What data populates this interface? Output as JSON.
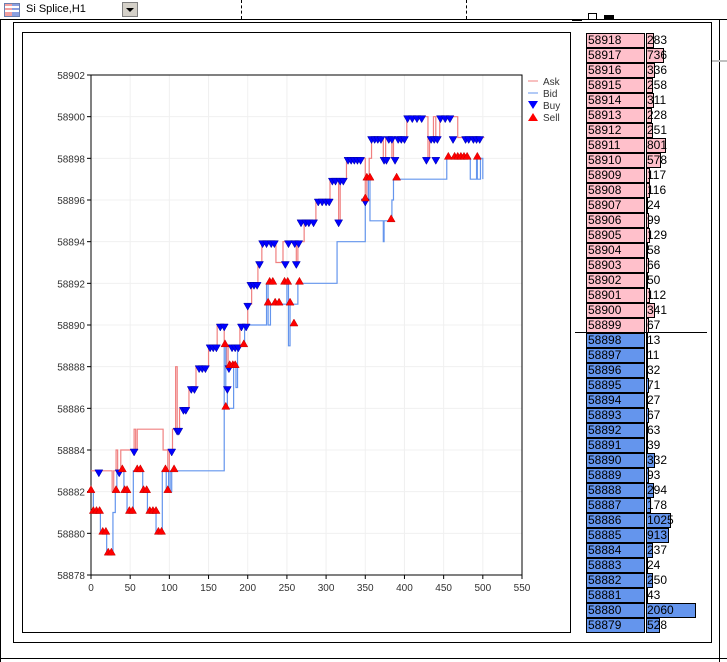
{
  "window": {
    "title": "Si Splice,H1"
  },
  "colors": {
    "ask": "#f08080",
    "bid": "#6495ed",
    "buy": "#0000ff",
    "sell": "#ff0000",
    "ask_row": "#ffc0cb",
    "bid_row": "#6495ed"
  },
  "chart_data": {
    "type": "line",
    "title": "",
    "xlabel": "",
    "ylabel": "",
    "xlim": [
      0,
      550
    ],
    "ylim": [
      58878,
      58902
    ],
    "xticks": [
      "0",
      "50",
      "100",
      "150",
      "200",
      "250",
      "300",
      "350",
      "400",
      "450",
      "500",
      "550"
    ],
    "yticks": [
      "58878",
      "58880",
      "58882",
      "58884",
      "58886",
      "58888",
      "58890",
      "58892",
      "58894",
      "58896",
      "58898",
      "58900",
      "58902"
    ],
    "grid": true,
    "legend_position": "top-right",
    "legend": [
      {
        "label": "Ask",
        "kind": "line"
      },
      {
        "label": "Bid",
        "kind": "line"
      },
      {
        "label": "Buy",
        "kind": "marker-down"
      },
      {
        "label": "Sell",
        "kind": "marker-up"
      }
    ],
    "series": [
      {
        "name": "Ask",
        "kind": "step",
        "points": [
          [
            0,
            58883
          ],
          [
            27,
            58882
          ],
          [
            29,
            58883
          ],
          [
            32,
            58884
          ],
          [
            34,
            58883
          ],
          [
            38,
            58884
          ],
          [
            55,
            58885
          ],
          [
            57,
            58884
          ],
          [
            59,
            58885
          ],
          [
            92,
            58884
          ],
          [
            98,
            58883
          ],
          [
            100,
            58884
          ],
          [
            104,
            58885
          ],
          [
            108,
            58888
          ],
          [
            110,
            58885
          ],
          [
            113,
            58886
          ],
          [
            125,
            58887
          ],
          [
            134,
            58888
          ],
          [
            150,
            58889
          ],
          [
            161,
            58890
          ],
          [
            170,
            58889
          ],
          [
            173,
            58888
          ],
          [
            175,
            58889
          ],
          [
            190,
            58890
          ],
          [
            200,
            58891
          ],
          [
            205,
            58892
          ],
          [
            213,
            58893
          ],
          [
            218,
            58894
          ],
          [
            236,
            58893
          ],
          [
            245,
            58894
          ],
          [
            262,
            58893
          ],
          [
            264,
            58894
          ],
          [
            272,
            58895
          ],
          [
            287,
            58896
          ],
          [
            305,
            58897
          ],
          [
            316,
            58895
          ],
          [
            318,
            58897
          ],
          [
            326,
            58898
          ],
          [
            350,
            58896
          ],
          [
            352,
            58897
          ],
          [
            355,
            58898
          ],
          [
            358,
            58899
          ],
          [
            373,
            58898
          ],
          [
            376,
            58899
          ],
          [
            384,
            58898
          ],
          [
            386,
            58899
          ],
          [
            403,
            58900
          ],
          [
            430,
            58898
          ],
          [
            432,
            58899
          ],
          [
            437,
            58900
          ],
          [
            440,
            58899
          ],
          [
            445,
            58900
          ],
          [
            468,
            58899
          ],
          [
            502,
            58899
          ]
        ]
      },
      {
        "name": "Bid",
        "kind": "step",
        "points": [
          [
            0,
            58882
          ],
          [
            3,
            58881
          ],
          [
            12,
            58880
          ],
          [
            20,
            58879
          ],
          [
            28,
            58881
          ],
          [
            31,
            58882
          ],
          [
            33,
            58883
          ],
          [
            42,
            58882
          ],
          [
            46,
            58881
          ],
          [
            54,
            58883
          ],
          [
            66,
            58882
          ],
          [
            72,
            58881
          ],
          [
            83,
            58880
          ],
          [
            91,
            58883
          ],
          [
            96,
            58882
          ],
          [
            99,
            58883
          ],
          [
            101,
            58882
          ],
          [
            103,
            58883
          ],
          [
            170,
            58889
          ],
          [
            172,
            58887
          ],
          [
            174,
            58886
          ],
          [
            182,
            58888
          ],
          [
            185,
            58887
          ],
          [
            187,
            58889
          ],
          [
            196,
            58890
          ],
          [
            224,
            58892
          ],
          [
            226,
            58890
          ],
          [
            229,
            58891
          ],
          [
            250,
            58892
          ],
          [
            252,
            58889
          ],
          [
            254,
            58891
          ],
          [
            264,
            58892
          ],
          [
            314,
            58894
          ],
          [
            350,
            58896
          ],
          [
            354,
            58897
          ],
          [
            356,
            58895
          ],
          [
            373,
            58894
          ],
          [
            374,
            58895
          ],
          [
            384,
            58896
          ],
          [
            386,
            58897
          ],
          [
            454,
            58898
          ],
          [
            484,
            58897
          ],
          [
            492,
            58898
          ],
          [
            493,
            58897
          ],
          [
            497,
            58898
          ],
          [
            500,
            58897
          ]
        ]
      },
      {
        "name": "Buy",
        "kind": "marker-down",
        "points": [
          [
            10,
            58883
          ],
          [
            36,
            58883
          ],
          [
            55,
            58884
          ],
          [
            103,
            58884
          ],
          [
            110,
            58885
          ],
          [
            112,
            58885
          ],
          [
            118,
            58886
          ],
          [
            121,
            58886
          ],
          [
            128,
            58887
          ],
          [
            132,
            58887
          ],
          [
            138,
            58888
          ],
          [
            142,
            58888
          ],
          [
            146,
            58888
          ],
          [
            152,
            58889
          ],
          [
            156,
            58889
          ],
          [
            160,
            58889
          ],
          [
            165,
            58890
          ],
          [
            170,
            58890
          ],
          [
            174,
            58887
          ],
          [
            176,
            58888
          ],
          [
            180,
            58889
          ],
          [
            184,
            58889
          ],
          [
            188,
            58889
          ],
          [
            192,
            58890
          ],
          [
            198,
            58890
          ],
          [
            200,
            58891
          ],
          [
            204,
            58892
          ],
          [
            208,
            58892
          ],
          [
            212,
            58892
          ],
          [
            215,
            58893
          ],
          [
            219,
            58894
          ],
          [
            224,
            58894
          ],
          [
            230,
            58894
          ],
          [
            234,
            58894
          ],
          [
            248,
            58893
          ],
          [
            252,
            58894
          ],
          [
            260,
            58894
          ],
          [
            265,
            58894
          ],
          [
            262,
            58893
          ],
          [
            268,
            58895
          ],
          [
            274,
            58895
          ],
          [
            278,
            58895
          ],
          [
            284,
            58895
          ],
          [
            290,
            58896
          ],
          [
            295,
            58896
          ],
          [
            300,
            58896
          ],
          [
            304,
            58896
          ],
          [
            308,
            58897
          ],
          [
            312,
            58897
          ],
          [
            316,
            58895
          ],
          [
            318,
            58897
          ],
          [
            322,
            58897
          ],
          [
            328,
            58898
          ],
          [
            332,
            58898
          ],
          [
            336,
            58898
          ],
          [
            340,
            58898
          ],
          [
            344,
            58898
          ],
          [
            350,
            58896
          ],
          [
            358,
            58899
          ],
          [
            362,
            58899
          ],
          [
            366,
            58899
          ],
          [
            370,
            58899
          ],
          [
            374,
            58898
          ],
          [
            377,
            58898
          ],
          [
            380,
            58899
          ],
          [
            384,
            58899
          ],
          [
            388,
            58898
          ],
          [
            392,
            58899
          ],
          [
            396,
            58899
          ],
          [
            400,
            58899
          ],
          [
            404,
            58900
          ],
          [
            410,
            58900
          ],
          [
            416,
            58900
          ],
          [
            422,
            58900
          ],
          [
            428,
            58898
          ],
          [
            434,
            58899
          ],
          [
            438,
            58899
          ],
          [
            440,
            58898
          ],
          [
            442,
            58899
          ],
          [
            446,
            58900
          ],
          [
            452,
            58900
          ],
          [
            458,
            58900
          ],
          [
            462,
            58899
          ],
          [
            478,
            58899
          ],
          [
            482,
            58899
          ],
          [
            488,
            58899
          ],
          [
            492,
            58899
          ],
          [
            496,
            58899
          ]
        ]
      },
      {
        "name": "Sell",
        "kind": "marker-up",
        "points": [
          [
            0,
            58882
          ],
          [
            3,
            58881
          ],
          [
            7,
            58881
          ],
          [
            11,
            58881
          ],
          [
            15,
            58880
          ],
          [
            19,
            58880
          ],
          [
            22,
            58879
          ],
          [
            26,
            58879
          ],
          [
            32,
            58882
          ],
          [
            40,
            58883
          ],
          [
            43,
            58882
          ],
          [
            46,
            58882
          ],
          [
            49,
            58881
          ],
          [
            53,
            58881
          ],
          [
            59,
            58883
          ],
          [
            63,
            58883
          ],
          [
            67,
            58882
          ],
          [
            71,
            58882
          ],
          [
            75,
            58881
          ],
          [
            79,
            58881
          ],
          [
            83,
            58881
          ],
          [
            86,
            58880
          ],
          [
            90,
            58880
          ],
          [
            95,
            58883
          ],
          [
            98,
            58882
          ],
          [
            106,
            58883
          ],
          [
            171,
            58889
          ],
          [
            172,
            58886
          ],
          [
            177,
            58888
          ],
          [
            181,
            58888
          ],
          [
            184,
            58888
          ],
          [
            195,
            58889
          ],
          [
            226,
            58891
          ],
          [
            228,
            58892
          ],
          [
            232,
            58892
          ],
          [
            235,
            58891
          ],
          [
            240,
            58891
          ],
          [
            247,
            58892
          ],
          [
            251,
            58892
          ],
          [
            254,
            58891
          ],
          [
            259,
            58890
          ],
          [
            266,
            58892
          ],
          [
            350,
            58896
          ],
          [
            352,
            58897
          ],
          [
            356,
            58897
          ],
          [
            383,
            58895
          ],
          [
            390,
            58897
          ],
          [
            456,
            58898
          ],
          [
            464,
            58898
          ],
          [
            468,
            58898
          ],
          [
            472,
            58898
          ],
          [
            476,
            58898
          ],
          [
            480,
            58898
          ],
          [
            493,
            58898
          ]
        ]
      }
    ]
  },
  "order_book": {
    "asks": [
      {
        "price": "58918",
        "volume": "283"
      },
      {
        "price": "58917",
        "volume": "736"
      },
      {
        "price": "58916",
        "volume": "336"
      },
      {
        "price": "58915",
        "volume": "258"
      },
      {
        "price": "58914",
        "volume": "311"
      },
      {
        "price": "58913",
        "volume": "228"
      },
      {
        "price": "58912",
        "volume": "251"
      },
      {
        "price": "58911",
        "volume": "801"
      },
      {
        "price": "58910",
        "volume": "578"
      },
      {
        "price": "58909",
        "volume": "117"
      },
      {
        "price": "58908",
        "volume": "116"
      },
      {
        "price": "58907",
        "volume": "24"
      },
      {
        "price": "58906",
        "volume": "99"
      },
      {
        "price": "58905",
        "volume": "129"
      },
      {
        "price": "58904",
        "volume": "58"
      },
      {
        "price": "58903",
        "volume": "66"
      },
      {
        "price": "58902",
        "volume": "50"
      },
      {
        "price": "58901",
        "volume": "112"
      },
      {
        "price": "58900",
        "volume": "341"
      },
      {
        "price": "58899",
        "volume": "67"
      }
    ],
    "bids": [
      {
        "price": "58898",
        "volume": "13"
      },
      {
        "price": "58897",
        "volume": "11"
      },
      {
        "price": "58896",
        "volume": "32"
      },
      {
        "price": "58895",
        "volume": "71"
      },
      {
        "price": "58894",
        "volume": "27"
      },
      {
        "price": "58893",
        "volume": "67"
      },
      {
        "price": "58892",
        "volume": "63"
      },
      {
        "price": "58891",
        "volume": "39"
      },
      {
        "price": "58890",
        "volume": "332"
      },
      {
        "price": "58889",
        "volume": "93"
      },
      {
        "price": "58888",
        "volume": "294"
      },
      {
        "price": "58887",
        "volume": "178"
      },
      {
        "price": "58886",
        "volume": "1025"
      },
      {
        "price": "58885",
        "volume": "913"
      },
      {
        "price": "58884",
        "volume": "237"
      },
      {
        "price": "58883",
        "volume": "24"
      },
      {
        "price": "58882",
        "volume": "250"
      },
      {
        "price": "58881",
        "volume": "43"
      },
      {
        "price": "58880",
        "volume": "2060"
      },
      {
        "price": "58879",
        "volume": "528"
      }
    ]
  }
}
